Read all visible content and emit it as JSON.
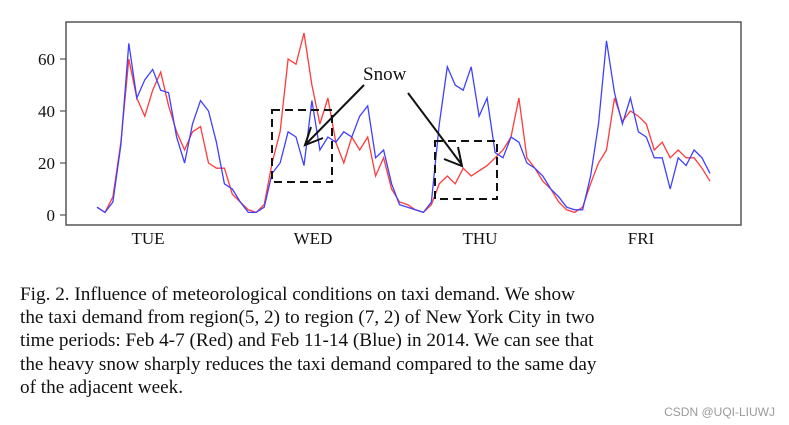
{
  "chart_data": {
    "type": "line",
    "title": "",
    "xlabel": "",
    "ylabel": "",
    "ylim": [
      -4,
      74
    ],
    "yticks": [
      0,
      20,
      40,
      60
    ],
    "xticklabels": [
      "TUE",
      "WED",
      "THU",
      "FRI"
    ],
    "grid": false,
    "series": [
      {
        "color": "#ff3b3b",
        "values": [
          3,
          1,
          7,
          28,
          60,
          45,
          38,
          48,
          55,
          42,
          32,
          25,
          32,
          34,
          20,
          18,
          18,
          8,
          5,
          2,
          1,
          4,
          20,
          32,
          60,
          58,
          70,
          50,
          35,
          45,
          28,
          20,
          30,
          25,
          30,
          15,
          22,
          10,
          5,
          4,
          2,
          1,
          4,
          12,
          15,
          12,
          18,
          15,
          17,
          19,
          22,
          25,
          30,
          45,
          22,
          18,
          13,
          10,
          5,
          2,
          1,
          3,
          12,
          20,
          25,
          45,
          36,
          40,
          38,
          35,
          25,
          28,
          22,
          25,
          22,
          22,
          18,
          13
        ]
      },
      {
        "color": "#4040ff",
        "values": [
          3,
          1,
          5,
          27,
          66,
          45,
          52,
          56,
          48,
          47,
          30,
          20,
          35,
          44,
          40,
          28,
          12,
          10,
          5,
          1,
          1,
          3,
          16,
          20,
          32,
          30,
          19,
          44,
          25,
          30,
          28,
          32,
          30,
          38,
          42,
          22,
          25,
          12,
          4,
          3,
          2,
          1,
          5,
          35,
          57,
          50,
          48,
          57,
          38,
          45,
          24,
          22,
          30,
          28,
          20,
          18,
          15,
          10,
          7,
          3,
          2,
          2,
          15,
          35,
          67,
          47,
          35,
          45,
          32,
          30,
          22,
          22,
          10,
          22,
          19,
          25,
          22,
          16
        ]
      }
    ],
    "annotations": [
      {
        "text": "Snow",
        "arrows": [
          "WED",
          "THU"
        ],
        "boxes": [
          {
            "day": "WED",
            "yrange": [
              13,
              40
            ]
          },
          {
            "day": "THU",
            "yrange": [
              6,
              28
            ]
          }
        ]
      }
    ]
  },
  "caption": {
    "lines": [
      "Fig. 2.   Influence of meteorological conditions on taxi demand. We show",
      "the taxi demand from region(5, 2) to region (7, 2) of New York City in two",
      "time periods: Feb 4-7 (Red) and Feb 11-14 (Blue) in 2014. We can see that",
      "the heavy snow sharply reduces the taxi demand compared to the same day",
      "of the adjacent week."
    ]
  },
  "watermark": "CSDN @UQI-LIUWJ"
}
